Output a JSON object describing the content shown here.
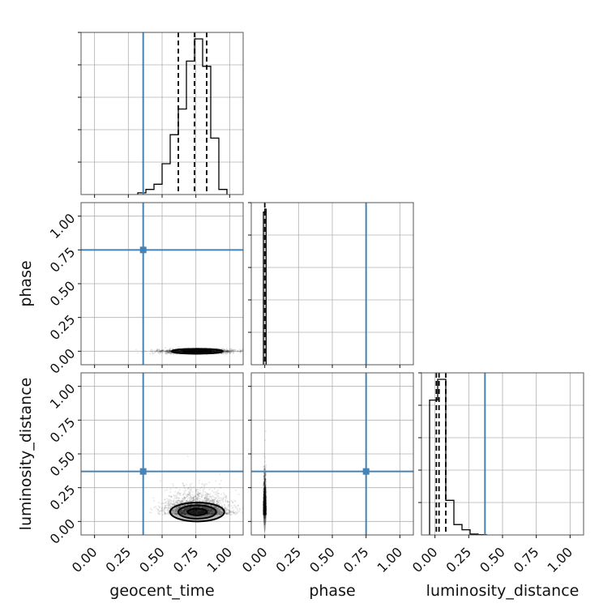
{
  "chart_data": {
    "type": "corner",
    "parameters": [
      "geocent_time",
      "phase",
      "luminosity_distance"
    ],
    "axis_range": [
      -0.1,
      1.1
    ],
    "ticks": [
      0.0,
      0.25,
      0.5,
      0.75,
      1.0
    ],
    "tick_labels": [
      "0.00",
      "0.25",
      "0.50",
      "0.75",
      "1.00"
    ],
    "grid": true,
    "colors": {
      "truth": "#4682b4",
      "histogram": "#000000",
      "quantile": "#000000",
      "density": "#000000",
      "grid": "#b0b0b0"
    },
    "truths": {
      "geocent_time": 0.36,
      "phase": 0.75,
      "luminosity_distance": 0.37
    },
    "histograms": [
      {
        "parameter": "geocent_time",
        "bin_edges": [
          0.32,
          0.38,
          0.44,
          0.5,
          0.56,
          0.62,
          0.68,
          0.74,
          0.8,
          0.86,
          0.92,
          0.98
        ],
        "counts": [
          0.01,
          0.03,
          0.06,
          0.18,
          0.35,
          0.5,
          0.78,
          0.91,
          0.75,
          0.33,
          0.03
        ],
        "quantiles": [
          0.62,
          0.74,
          0.83
        ]
      },
      {
        "parameter": "phase",
        "bin_edges": [
          -0.01,
          0.0,
          0.01
        ],
        "counts": [
          0.98,
          1.0
        ],
        "quantiles": [
          0.0
        ]
      },
      {
        "parameter": "luminosity_distance",
        "bin_edges": [
          -0.04,
          0.02,
          0.08,
          0.14,
          0.2,
          0.26,
          0.32,
          0.38
        ],
        "counts": [
          0.78,
          0.9,
          0.2,
          0.06,
          0.03,
          0.005,
          0.002
        ],
        "quantiles": [
          0.01,
          0.03,
          0.08
        ]
      }
    ],
    "panels": [
      {
        "x": "geocent_time",
        "y": "phase",
        "center": [
          0.76,
          0.0
        ],
        "spread": [
          0.13,
          0.008
        ],
        "contours": [
          {
            "level": "outer",
            "rx": 0.19,
            "ry": 0.018
          },
          {
            "level": "inner",
            "rx": 0.1,
            "ry": 0.01
          }
        ]
      },
      {
        "x": "geocent_time",
        "y": "luminosity_distance",
        "center": [
          0.76,
          0.05
        ],
        "spread": [
          0.12,
          0.05
        ],
        "contours": [
          {
            "level": "outer",
            "rx": 0.2,
            "ry": 0.07
          },
          {
            "level": "middle",
            "rx": 0.14,
            "ry": 0.05
          },
          {
            "level": "inner",
            "rx": 0.07,
            "ry": 0.025
          }
        ]
      },
      {
        "x": "phase",
        "y": "luminosity_distance",
        "center": [
          0.0,
          0.05
        ],
        "spread": [
          0.004,
          0.08
        ],
        "contours": []
      }
    ]
  }
}
